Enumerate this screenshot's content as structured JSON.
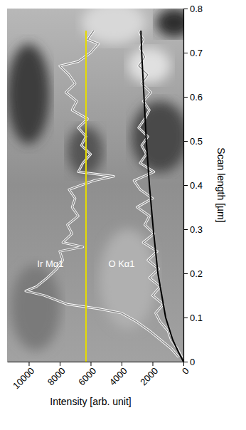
{
  "chart_data": {
    "type": "line",
    "orientation": "horizontal",
    "xlabel": "Intensity [arb. unit]",
    "ylabel": "Scan length [µm]",
    "xlim": [
      11400,
      0
    ],
    "xticks": [
      10000,
      8000,
      6000,
      4000,
      2000,
      0
    ],
    "ylim": [
      0,
      0.8
    ],
    "yticks": [
      0,
      0.1,
      0.2,
      0.3,
      0.4,
      0.5,
      0.6,
      0.7,
      0.8
    ],
    "grid": false,
    "series": [
      {
        "name": "Ir Mα1",
        "color": "#8a8a8a",
        "values": [
          300,
          800,
          1500,
          2200,
          3000,
          4000,
          5500,
          7500,
          9000,
          10200,
          9500,
          8800,
          8200,
          7800,
          8000,
          6500,
          7800,
          7200,
          7500,
          6800,
          7200,
          7000,
          7400,
          5800,
          4500,
          6800,
          6500,
          6000,
          6600,
          6300,
          6800,
          6200,
          7200,
          6900,
          7600,
          7000,
          7400,
          8000,
          6800,
          6000,
          5500,
          6200,
          5800
        ],
        "y": [
          0.01,
          0.03,
          0.05,
          0.07,
          0.09,
          0.11,
          0.12,
          0.13,
          0.15,
          0.16,
          0.17,
          0.19,
          0.21,
          0.23,
          0.25,
          0.26,
          0.27,
          0.29,
          0.31,
          0.33,
          0.35,
          0.37,
          0.39,
          0.41,
          0.42,
          0.43,
          0.45,
          0.47,
          0.49,
          0.51,
          0.53,
          0.55,
          0.57,
          0.59,
          0.61,
          0.63,
          0.65,
          0.67,
          0.68,
          0.7,
          0.72,
          0.73,
          0.75
        ]
      },
      {
        "name": "O Kα1",
        "color": "#8a8a8a",
        "values": [
          100,
          400,
          800,
          1000,
          1500,
          1800,
          1300,
          2000,
          1500,
          2200,
          1600,
          2300,
          1700,
          2600,
          1900,
          2500,
          2200,
          3000,
          2000,
          2800,
          3200,
          1900,
          2800,
          2400,
          2700,
          2300,
          2900,
          2500,
          2200,
          2600,
          2100,
          2700,
          2300,
          2900,
          2500,
          2800,
          2600,
          2900
        ],
        "y": [
          0.01,
          0.03,
          0.05,
          0.07,
          0.09,
          0.11,
          0.13,
          0.15,
          0.17,
          0.19,
          0.21,
          0.23,
          0.25,
          0.27,
          0.29,
          0.31,
          0.33,
          0.35,
          0.37,
          0.39,
          0.41,
          0.43,
          0.45,
          0.47,
          0.49,
          0.51,
          0.53,
          0.55,
          0.57,
          0.59,
          0.61,
          0.63,
          0.65,
          0.67,
          0.69,
          0.71,
          0.73,
          0.75
        ]
      },
      {
        "color": "#000000",
        "values": [
          0,
          300,
          700,
          1150,
          1650,
          1950,
          2200,
          2400,
          2550,
          2700,
          2750
        ],
        "y": [
          0,
          0.02,
          0.05,
          0.1,
          0.2,
          0.3,
          0.4,
          0.5,
          0.6,
          0.7,
          0.75
        ]
      },
      {
        "color": "#e6dc00",
        "values": [
          6300,
          6300
        ],
        "y": [
          0,
          0.75
        ]
      }
    ]
  }
}
